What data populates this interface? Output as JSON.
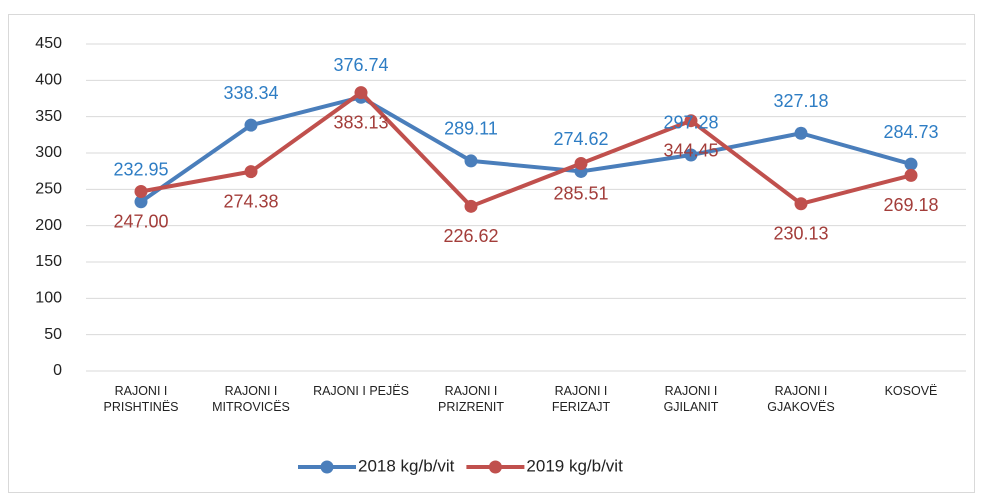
{
  "chart_data": {
    "type": "line",
    "categories": [
      "RAJONI I PRISHTINËS",
      "RAJONI I MITROVICËS",
      "RAJONI I PEJËS",
      "RAJONI I PRIZRENIT",
      "RAJONI I FERIZAJT",
      "RAJONI I GJILANIT",
      "RAJONI I GJAKOVËS",
      "KOSOVË"
    ],
    "series": [
      {
        "name": "2018 kg/b/vit",
        "color": "#4a7ebb",
        "label_color": "#2e7dc4",
        "values": [
          232.95,
          338.34,
          376.74,
          289.11,
          274.62,
          297.28,
          327.18,
          284.73
        ],
        "value_labels": [
          "232.95",
          "338.34",
          "376.74",
          "289.11",
          "274.62",
          "297.28",
          "327.18",
          "284.73"
        ]
      },
      {
        "name": "2019 kg/b/vit",
        "color": "#c0504d",
        "label_color": "#a33d3a",
        "values": [
          247,
          274.38,
          383.13,
          226.62,
          285.51,
          344.45,
          230.13,
          269.18
        ],
        "value_labels": [
          "247.00",
          "274.38",
          "383.13",
          "226.62",
          "285.51",
          "344.45",
          "230.13",
          "269.18"
        ]
      }
    ],
    "ylim": [
      0,
      450
    ],
    "yticks": [
      0,
      50,
      100,
      150,
      200,
      250,
      300,
      350,
      400,
      450
    ],
    "grid": true,
    "legend": "bottom"
  }
}
